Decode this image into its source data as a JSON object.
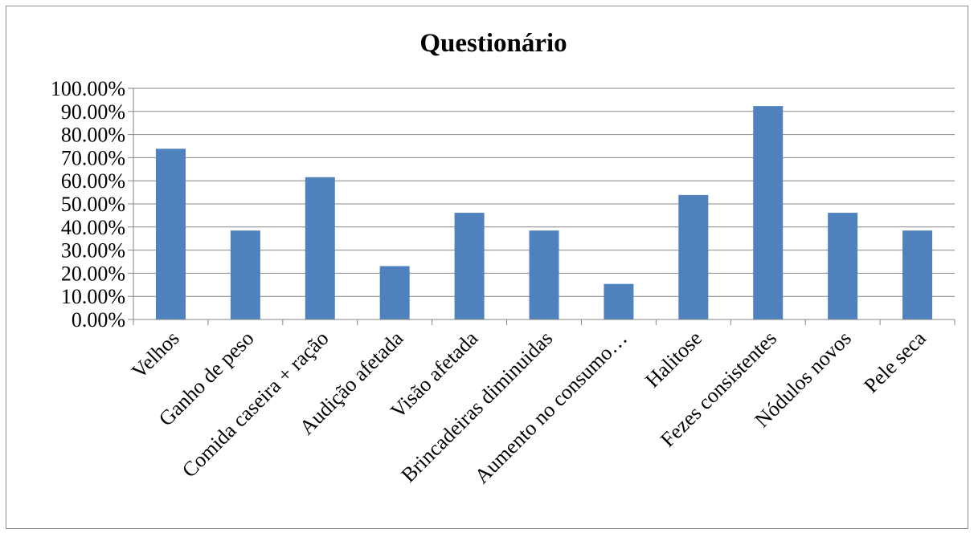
{
  "chart_data": {
    "type": "bar",
    "title": "Questionário",
    "xlabel": "",
    "ylabel": "",
    "ylim": [
      0,
      1
    ],
    "y_tick_values": [
      0,
      0.1,
      0.2,
      0.3,
      0.4,
      0.5,
      0.6,
      0.7,
      0.8,
      0.9,
      1.0
    ],
    "y_tick_labels": [
      "0.00%",
      "10.00%",
      "20.00%",
      "30.00%",
      "40.00%",
      "50.00%",
      "60.00%",
      "70.00%",
      "80.00%",
      "90.00%",
      "100.00%"
    ],
    "grid": true,
    "legend": "none",
    "categories": [
      "Velhos",
      "Ganho de peso",
      "Comida caseira + ração",
      "Audição afetada",
      "Visão afetada",
      "Brincadeiras diminuidas",
      "Aumento no consumo…",
      "Halitose",
      "Fezes consistentes",
      "Nódulos novos",
      "Pele seca"
    ],
    "values": [
      0.7385,
      0.3846,
      0.6154,
      0.2308,
      0.4615,
      0.3846,
      0.1538,
      0.5385,
      0.9231,
      0.4615,
      0.3846
    ],
    "colors": {
      "bar": "#4f81bd",
      "gridline": "#868686",
      "axis": "#868686",
      "text": "#000000"
    }
  }
}
